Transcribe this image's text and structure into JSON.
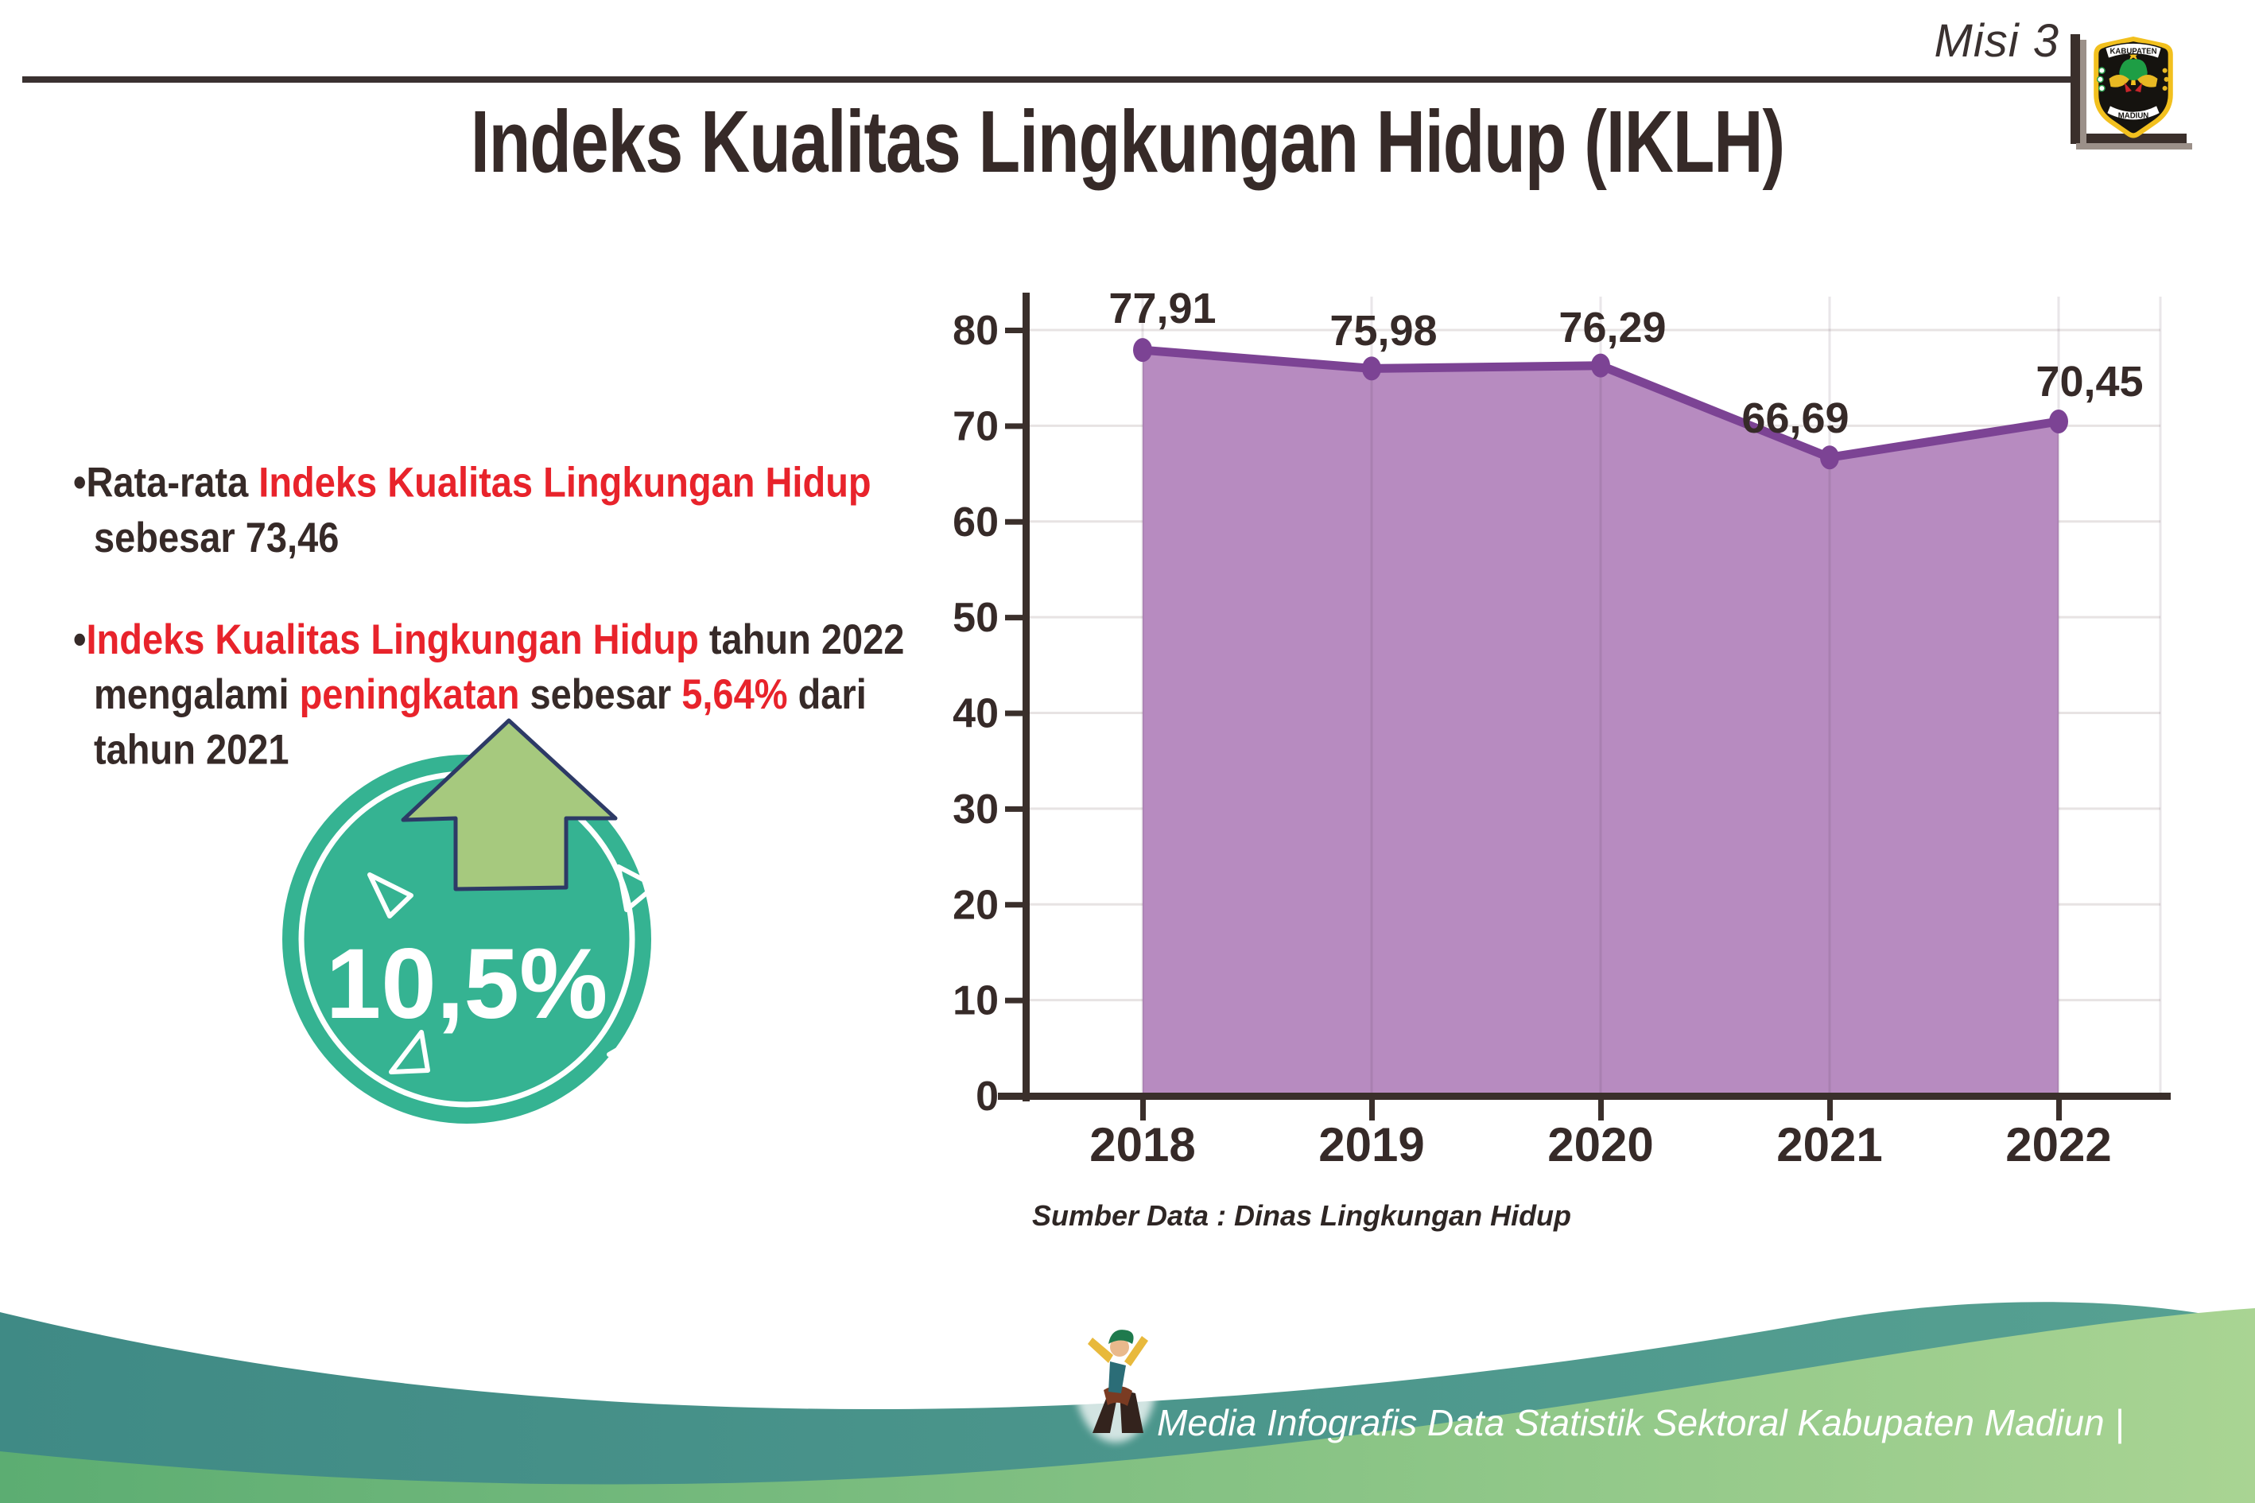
{
  "page": {
    "misi_label": "Misi 3",
    "title": "Indeks Kualitas Lingkungan Hidup (IKLH)"
  },
  "logo": {
    "top": "KABUPATEN",
    "bottom": "MADIUN"
  },
  "bullets": [
    {
      "segments": [
        {
          "text": "Rata-rata ",
          "color": "dark"
        },
        {
          "text": "Indeks Kualitas Lingkungan Hidup",
          "color": "red"
        },
        {
          "text": " sebesar 73,46",
          "color": "dark"
        }
      ]
    },
    {
      "segments": [
        {
          "text": "Indeks Kualitas Lingkungan Hidup",
          "color": "red"
        },
        {
          "text": " tahun 2022 mengalami ",
          "color": "dark"
        },
        {
          "text": "peningkatan",
          "color": "red"
        },
        {
          "text": " sebesar ",
          "color": "dark"
        },
        {
          "text": "5,64%",
          "color": "red"
        },
        {
          "text": " dari tahun 2021",
          "color": "dark"
        }
      ]
    }
  ],
  "badge": {
    "value": "10,5%"
  },
  "chart_data": {
    "type": "area",
    "categories": [
      "2018",
      "2019",
      "2020",
      "2021",
      "2022"
    ],
    "values": [
      77.91,
      75.98,
      76.29,
      66.69,
      70.45
    ],
    "value_labels": [
      "77,91",
      "75,98",
      "76,29",
      "66,69",
      "70,45"
    ],
    "title": "Indeks Kualitas Lingkungan Hidup (IKLH)",
    "xlabel": "",
    "ylabel": "",
    "ylim": [
      0,
      80
    ],
    "ytick_step": 10,
    "yticks": [
      0,
      10,
      20,
      30,
      40,
      50,
      60,
      70,
      80
    ],
    "grid": true,
    "legend": "none",
    "source_note": "Sumber Data : Dinas Lingkungan Hidup",
    "colors": {
      "fill": "#b78bc0",
      "line": "#7c4394",
      "marker": "#7c4394",
      "label": "#362a28",
      "axis": "#3a2f2b",
      "grid": "#e7e3e3"
    }
  },
  "footer": {
    "credit": "Media Infografis Data Statistik Sektoral Kabupaten Madiun |"
  },
  "colors": {
    "accent_red": "#e8232b",
    "badge_teal": "#35b392",
    "arrow_green": "#a6c97e",
    "arrow_outline": "#2d3a66",
    "footer_teal_dark": "#3f8a85",
    "footer_teal_light": "#57a192",
    "footer_green_dark": "#5cad72",
    "footer_green_light": "#a9d493"
  }
}
